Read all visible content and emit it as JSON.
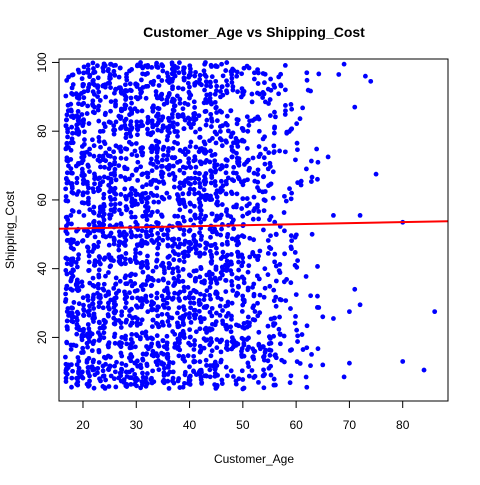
{
  "chart_data": {
    "type": "scatter",
    "title": "Customer_Age vs Shipping_Cost",
    "xlabel": "Customer_Age",
    "ylabel": "Shipping_Cost",
    "xlim": [
      15.5,
      88.5
    ],
    "ylim": [
      1.5,
      101
    ],
    "x_ticks": [
      20,
      30,
      40,
      50,
      60,
      70,
      80
    ],
    "y_ticks": [
      20,
      40,
      60,
      80,
      100
    ],
    "point_color": "#0000FF",
    "trend_color": "#FF0000",
    "trend_line": {
      "x": [
        15.5,
        88.5
      ],
      "y": [
        51.6,
        53.8
      ]
    },
    "sparse_points": [
      {
        "x": 66,
        "y": 72.5
      },
      {
        "x": 67,
        "y": 55.5
      },
      {
        "x": 68,
        "y": 96.5
      },
      {
        "x": 69,
        "y": 99.5
      },
      {
        "x": 70,
        "y": 12.5
      },
      {
        "x": 70,
        "y": 27.5
      },
      {
        "x": 71,
        "y": 34
      },
      {
        "x": 71,
        "y": 87
      },
      {
        "x": 72,
        "y": 55.5
      },
      {
        "x": 72,
        "y": 29.5
      },
      {
        "x": 73,
        "y": 96
      },
      {
        "x": 74,
        "y": 94.5
      },
      {
        "x": 75,
        "y": 67.5
      },
      {
        "x": 80,
        "y": 53.5
      },
      {
        "x": 80,
        "y": 13
      },
      {
        "x": 84,
        "y": 10.5
      },
      {
        "x": 86,
        "y": 27.5
      },
      {
        "x": 64,
        "y": 32
      },
      {
        "x": 65,
        "y": 26
      },
      {
        "x": 63,
        "y": 50
      },
      {
        "x": 65,
        "y": 12
      },
      {
        "x": 62,
        "y": 5.5
      },
      {
        "x": 69,
        "y": 8.5
      },
      {
        "x": 67,
        "y": 25.5
      },
      {
        "x": 62,
        "y": 97
      },
      {
        "x": 64,
        "y": 66
      }
    ]
  }
}
